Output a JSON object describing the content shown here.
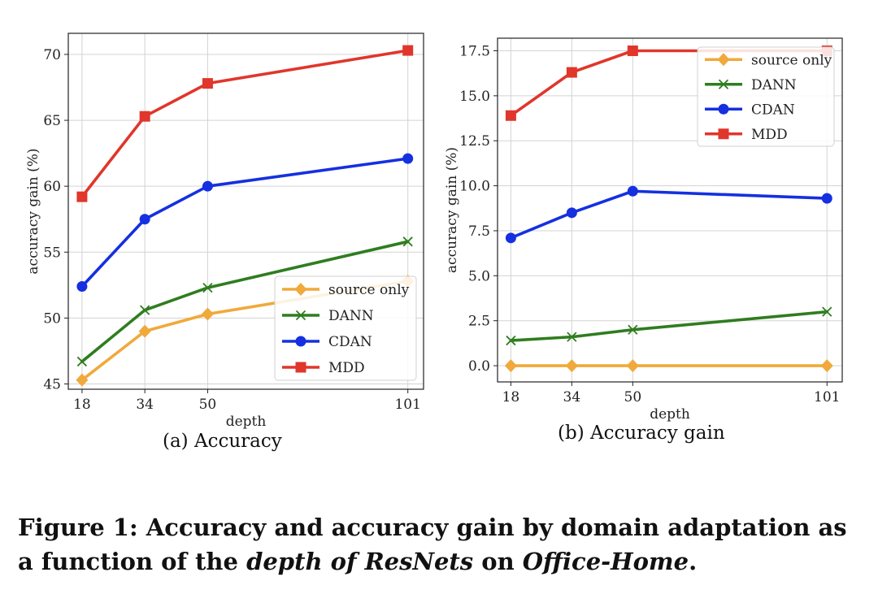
{
  "chart_data": [
    {
      "type": "line",
      "subcaption": "(a)  Accuracy",
      "xlabel": "depth",
      "ylabel": "accuracy gain (%)",
      "x": [
        18,
        34,
        50,
        101
      ],
      "xticks": [
        "18",
        "34",
        "50",
        "101"
      ],
      "yticks": [
        "45",
        "50",
        "55",
        "60",
        "65",
        "70"
      ],
      "ylim": [
        44.6,
        71.6
      ],
      "grid": true,
      "legend_position": "lower-right",
      "series": [
        {
          "name": "source only",
          "color": "#f0a93a",
          "marker": "diamond",
          "values": [
            45.3,
            49.0,
            50.3,
            52.8
          ]
        },
        {
          "name": "DANN",
          "color": "#2f7d1f",
          "marker": "x",
          "values": [
            46.7,
            50.6,
            52.3,
            55.8
          ]
        },
        {
          "name": "CDAN",
          "color": "#1530e0",
          "marker": "circle",
          "values": [
            52.4,
            57.5,
            60.0,
            62.1
          ]
        },
        {
          "name": "MDD",
          "color": "#e0362b",
          "marker": "square",
          "values": [
            59.2,
            65.3,
            67.8,
            70.3
          ]
        }
      ]
    },
    {
      "type": "line",
      "subcaption": "(b)  Accuracy gain",
      "xlabel": "depth",
      "ylabel": "accuracy gain (%)",
      "x": [
        18,
        34,
        50,
        101
      ],
      "xticks": [
        "18",
        "34",
        "50",
        "101"
      ],
      "yticks": [
        "0.0",
        "2.5",
        "5.0",
        "7.5",
        "10.0",
        "12.5",
        "15.0",
        "17.5"
      ],
      "ylim": [
        -0.9,
        18.2
      ],
      "grid": true,
      "legend_position": "top-right",
      "series": [
        {
          "name": "source only",
          "color": "#f0a93a",
          "marker": "diamond",
          "values": [
            0.0,
            0.0,
            0.0,
            0.0
          ]
        },
        {
          "name": "DANN",
          "color": "#2f7d1f",
          "marker": "x",
          "values": [
            1.4,
            1.6,
            2.0,
            3.0
          ]
        },
        {
          "name": "CDAN",
          "color": "#1530e0",
          "marker": "circle",
          "values": [
            7.1,
            8.5,
            9.7,
            9.3
          ]
        },
        {
          "name": "MDD",
          "color": "#e0362b",
          "marker": "square",
          "values": [
            13.9,
            16.3,
            17.5,
            17.5
          ]
        }
      ]
    }
  ],
  "figure_caption": {
    "prefix": "Figure 1: Accuracy and accuracy gain by domain adaptation as a function of the ",
    "emph1": "depth of ResNets",
    "middle": " on ",
    "emph2": "Office-Home",
    "suffix": "."
  }
}
